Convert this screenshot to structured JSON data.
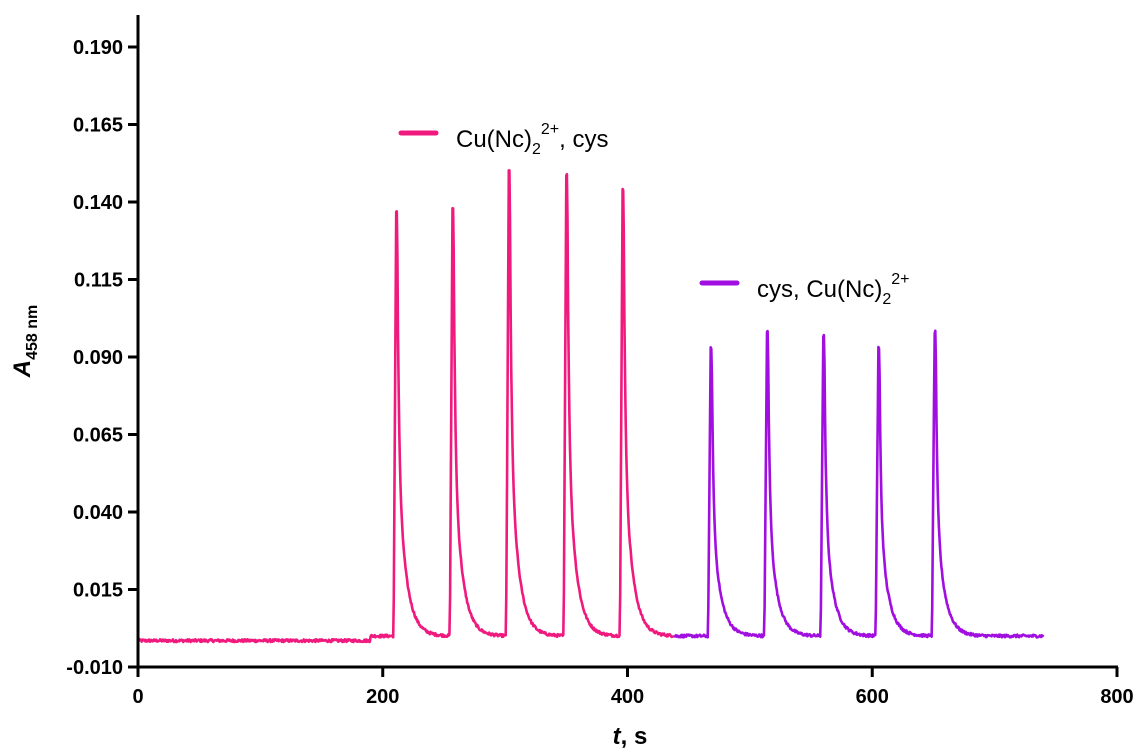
{
  "chart_data": {
    "type": "line",
    "xlabel": {
      "main": "t",
      "unit": ", s"
    },
    "ylabel": {
      "main": "A",
      "sub": "458 nm"
    },
    "xlim": [
      0,
      800
    ],
    "ylim": [
      -0.01,
      0.2
    ],
    "x_ticks": [
      {
        "value": 0,
        "label": "0"
      },
      {
        "value": 200,
        "label": "200"
      },
      {
        "value": 400,
        "label": "400"
      },
      {
        "value": 600,
        "label": "600"
      },
      {
        "value": 800,
        "label": "800"
      }
    ],
    "y_ticks": [
      {
        "value": -0.01,
        "label": "-0.010"
      },
      {
        "value": 0.015,
        "label": "0.015"
      },
      {
        "value": 0.04,
        "label": "0.040"
      },
      {
        "value": 0.065,
        "label": "0.065"
      },
      {
        "value": 0.09,
        "label": "0.090"
      },
      {
        "value": 0.115,
        "label": "0.115"
      },
      {
        "value": 0.14,
        "label": "0.140"
      },
      {
        "value": 0.165,
        "label": "0.165"
      },
      {
        "value": 0.19,
        "label": "0.190"
      }
    ],
    "grid": false,
    "series": [
      {
        "name": "Cu(Nc)2 2+, cys",
        "legend": {
          "base": "Cu(Nc)",
          "sub": "2",
          "sup": "2+",
          "tail": ", cys"
        },
        "color": "#f0197d",
        "x_range": [
          0,
          438
        ],
        "baseline": -0.0015,
        "plateau": {
          "from": 190,
          "value": 0.0
        },
        "peaks": [
          {
            "x": 211,
            "y": 0.137
          },
          {
            "x": 257,
            "y": 0.138
          },
          {
            "x": 303,
            "y": 0.15
          },
          {
            "x": 350,
            "y": 0.149
          },
          {
            "x": 396,
            "y": 0.144
          }
        ]
      },
      {
        "name": "cys, Cu(Nc)2 2+",
        "legend": {
          "base": "cys, Cu(Nc)",
          "sub": "2",
          "sup": "2+",
          "tail": ""
        },
        "color": "#a10ee0",
        "x_range": [
          438,
          740
        ],
        "baseline": 0.0,
        "peaks": [
          {
            "x": 468,
            "y": 0.093
          },
          {
            "x": 514,
            "y": 0.098
          },
          {
            "x": 560,
            "y": 0.097
          },
          {
            "x": 605,
            "y": 0.093
          },
          {
            "x": 651,
            "y": 0.098
          }
        ]
      }
    ]
  }
}
